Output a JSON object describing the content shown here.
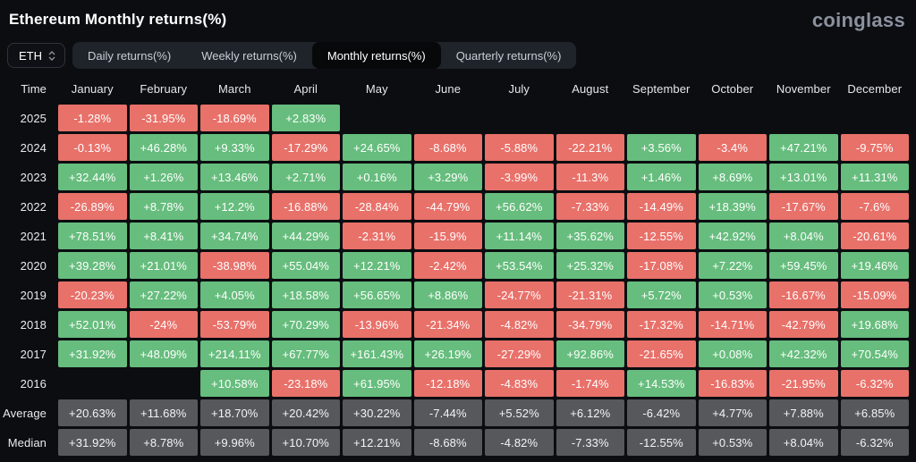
{
  "header": {
    "title": "Ethereum Monthly returns(%)",
    "logo": "coinglass"
  },
  "controls": {
    "symbol": "ETH",
    "updown_icon": "up-down-chevrons",
    "tabs": [
      {
        "label": "Daily returns(%)",
        "active": false
      },
      {
        "label": "Weekly returns(%)",
        "active": false
      },
      {
        "label": "Monthly returns(%)",
        "active": true
      },
      {
        "label": "Quarterly returns(%)",
        "active": false
      }
    ]
  },
  "colors": {
    "positive": "#66bd7d",
    "negative": "#e8716a",
    "summary": "#56585c",
    "background": "#0b0d11"
  },
  "table": {
    "columns": [
      "Time",
      "January",
      "February",
      "March",
      "April",
      "May",
      "June",
      "July",
      "August",
      "September",
      "October",
      "November",
      "December"
    ],
    "rows": [
      {
        "label": "2025",
        "type": "year",
        "values": [
          "-1.28%",
          "-31.95%",
          "-18.69%",
          "+2.83%",
          "",
          "",
          "",
          "",
          "",
          "",
          "",
          ""
        ]
      },
      {
        "label": "2024",
        "type": "year",
        "values": [
          "-0.13%",
          "+46.28%",
          "+9.33%",
          "-17.29%",
          "+24.65%",
          "-8.68%",
          "-5.88%",
          "-22.21%",
          "+3.56%",
          "-3.4%",
          "+47.21%",
          "-9.75%"
        ]
      },
      {
        "label": "2023",
        "type": "year",
        "values": [
          "+32.44%",
          "+1.26%",
          "+13.46%",
          "+2.71%",
          "+0.16%",
          "+3.29%",
          "-3.99%",
          "-11.3%",
          "+1.46%",
          "+8.69%",
          "+13.01%",
          "+11.31%"
        ]
      },
      {
        "label": "2022",
        "type": "year",
        "values": [
          "-26.89%",
          "+8.78%",
          "+12.2%",
          "-16.88%",
          "-28.84%",
          "-44.79%",
          "+56.62%",
          "-7.33%",
          "-14.49%",
          "+18.39%",
          "-17.67%",
          "-7.6%"
        ]
      },
      {
        "label": "2021",
        "type": "year",
        "values": [
          "+78.51%",
          "+8.41%",
          "+34.74%",
          "+44.29%",
          "-2.31%",
          "-15.9%",
          "+11.14%",
          "+35.62%",
          "-12.55%",
          "+42.92%",
          "+8.04%",
          "-20.61%"
        ]
      },
      {
        "label": "2020",
        "type": "year",
        "values": [
          "+39.28%",
          "+21.01%",
          "-38.98%",
          "+55.04%",
          "+12.21%",
          "-2.42%",
          "+53.54%",
          "+25.32%",
          "-17.08%",
          "+7.22%",
          "+59.45%",
          "+19.46%"
        ]
      },
      {
        "label": "2019",
        "type": "year",
        "values": [
          "-20.23%",
          "+27.22%",
          "+4.05%",
          "+18.58%",
          "+56.65%",
          "+8.86%",
          "-24.77%",
          "-21.31%",
          "+5.72%",
          "+0.53%",
          "-16.67%",
          "-15.09%"
        ]
      },
      {
        "label": "2018",
        "type": "year",
        "values": [
          "+52.01%",
          "-24%",
          "-53.79%",
          "+70.29%",
          "-13.96%",
          "-21.34%",
          "-4.82%",
          "-34.79%",
          "-17.32%",
          "-14.71%",
          "-42.79%",
          "+19.68%"
        ]
      },
      {
        "label": "2017",
        "type": "year",
        "values": [
          "+31.92%",
          "+48.09%",
          "+214.11%",
          "+67.77%",
          "+161.43%",
          "+26.19%",
          "-27.29%",
          "+92.86%",
          "-21.65%",
          "+0.08%",
          "+42.32%",
          "+70.54%"
        ]
      },
      {
        "label": "2016",
        "type": "year",
        "values": [
          "",
          "",
          "+10.58%",
          "-23.18%",
          "+61.95%",
          "-12.18%",
          "-4.83%",
          "-1.74%",
          "+14.53%",
          "-16.83%",
          "-21.95%",
          "-6.32%"
        ]
      },
      {
        "label": "Average",
        "type": "summary",
        "values": [
          "+20.63%",
          "+11.68%",
          "+18.70%",
          "+20.42%",
          "+30.22%",
          "-7.44%",
          "+5.52%",
          "+6.12%",
          "-6.42%",
          "+4.77%",
          "+7.88%",
          "+6.85%"
        ]
      },
      {
        "label": "Median",
        "type": "summary",
        "values": [
          "+31.92%",
          "+8.78%",
          "+9.96%",
          "+10.70%",
          "+12.21%",
          "-8.68%",
          "-4.82%",
          "-7.33%",
          "-12.55%",
          "+0.53%",
          "+8.04%",
          "-6.32%"
        ]
      }
    ]
  }
}
